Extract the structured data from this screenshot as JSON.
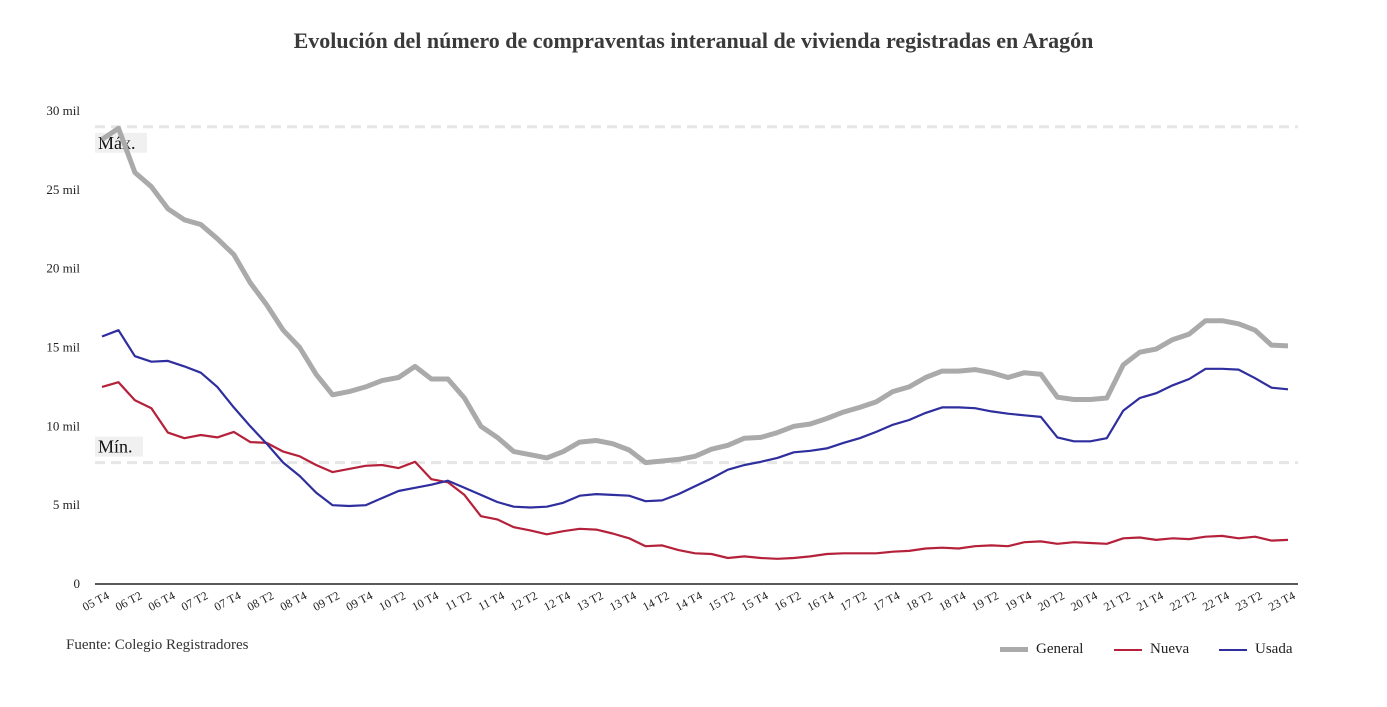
{
  "chart_data": {
    "type": "line",
    "title": "Evolución del número de compraventas interanual de vivienda registradas en Aragón",
    "source": "Fuente: Colegio Registradores",
    "ylim": [
      0,
      30
    ],
    "yticks": [
      0,
      5,
      10,
      15,
      20,
      25,
      30
    ],
    "ytick_labels": [
      "0",
      "5 mil",
      "10 mil",
      "15 mil",
      "20 mil",
      "25 mil",
      "30 mil"
    ],
    "grid": false,
    "legend": "bottom-right",
    "x_start": "05 T4",
    "xtick_labels": [
      "05 T4",
      "06 T2",
      "06 T4",
      "07 T2",
      "07 T4",
      "08 T2",
      "08 T4",
      "09 T2",
      "09 T4",
      "10 T2",
      "10 T4",
      "11 T2",
      "11 T4",
      "12 T2",
      "12 T4",
      "13 T2",
      "13 T4",
      "14 T2",
      "14 T4",
      "15 T2",
      "15 T4",
      "16 T2",
      "16 T4",
      "17 T2",
      "17 T4",
      "18 T2",
      "18 T4",
      "19 T2",
      "19 T4",
      "20 T2",
      "20 T4",
      "21 T2",
      "21 T4",
      "22 T2",
      "22 T4",
      "23 T2",
      "23 T4"
    ],
    "reference_lines": [
      {
        "label": "Máx.",
        "value": 29.0
      },
      {
        "label": "Mín.",
        "value": 7.7
      }
    ],
    "series": [
      {
        "name": "General",
        "color": "#aaaaaa",
        "values": [
          28.2,
          28.9,
          26.1,
          25.2,
          23.8,
          23.1,
          22.8,
          21.9,
          20.9,
          19.1,
          17.7,
          16.1,
          15.0,
          13.3,
          12.0,
          12.2,
          12.5,
          12.9,
          13.1,
          13.8,
          13.0,
          13.0,
          11.8,
          10.0,
          9.3,
          8.4,
          8.2,
          8.0,
          8.4,
          9.0,
          9.1,
          8.9,
          8.5,
          7.7,
          7.8,
          7.9,
          8.1,
          8.55,
          8.8,
          9.25,
          9.3,
          9.6,
          10.0,
          10.15,
          10.5,
          10.9,
          11.2,
          11.55,
          12.2,
          12.5,
          13.1,
          13.5,
          13.5,
          13.6,
          13.4,
          13.1,
          13.4,
          13.3,
          11.85,
          11.7,
          11.7,
          11.8,
          13.9,
          14.7,
          14.9,
          15.5,
          15.85,
          16.7,
          16.7,
          16.5,
          16.1,
          15.15,
          15.1
        ]
      },
      {
        "name": "Nueva",
        "color": "#b5213a",
        "values": [
          12.5,
          12.8,
          11.65,
          11.15,
          9.6,
          9.25,
          9.45,
          9.3,
          9.65,
          9.0,
          8.95,
          8.4,
          8.1,
          7.55,
          7.1,
          7.3,
          7.5,
          7.55,
          7.35,
          7.75,
          6.65,
          6.45,
          5.65,
          4.3,
          4.1,
          3.6,
          3.4,
          3.15,
          3.35,
          3.5,
          3.45,
          3.2,
          2.9,
          2.4,
          2.45,
          2.15,
          1.95,
          1.9,
          1.65,
          1.75,
          1.65,
          1.6,
          1.65,
          1.75,
          1.9,
          1.95,
          1.95,
          1.95,
          2.05,
          2.1,
          2.25,
          2.3,
          2.25,
          2.4,
          2.45,
          2.4,
          2.65,
          2.7,
          2.55,
          2.65,
          2.6,
          2.55,
          2.9,
          2.95,
          2.8,
          2.9,
          2.85,
          3.0,
          3.05,
          2.9,
          3.0,
          2.75,
          2.8
        ]
      },
      {
        "name": "Usada",
        "color": "#2e2e9e",
        "values": [
          15.7,
          16.1,
          14.45,
          14.1,
          14.15,
          13.8,
          13.4,
          12.5,
          11.2,
          10.0,
          8.9,
          7.7,
          6.85,
          5.8,
          5.0,
          4.95,
          5.0,
          5.45,
          5.9,
          6.1,
          6.3,
          6.55,
          6.1,
          5.65,
          5.2,
          4.9,
          4.85,
          4.9,
          5.15,
          5.6,
          5.7,
          5.65,
          5.6,
          5.25,
          5.3,
          5.7,
          6.2,
          6.7,
          7.25,
          7.55,
          7.75,
          8.0,
          8.35,
          8.45,
          8.6,
          8.95,
          9.25,
          9.65,
          10.1,
          10.4,
          10.85,
          11.2,
          11.2,
          11.15,
          10.95,
          10.8,
          10.7,
          10.6,
          9.3,
          9.05,
          9.05,
          9.25,
          11.0,
          11.8,
          12.1,
          12.6,
          13.0,
          13.65,
          13.65,
          13.6,
          13.05,
          12.45,
          12.35
        ]
      }
    ]
  }
}
